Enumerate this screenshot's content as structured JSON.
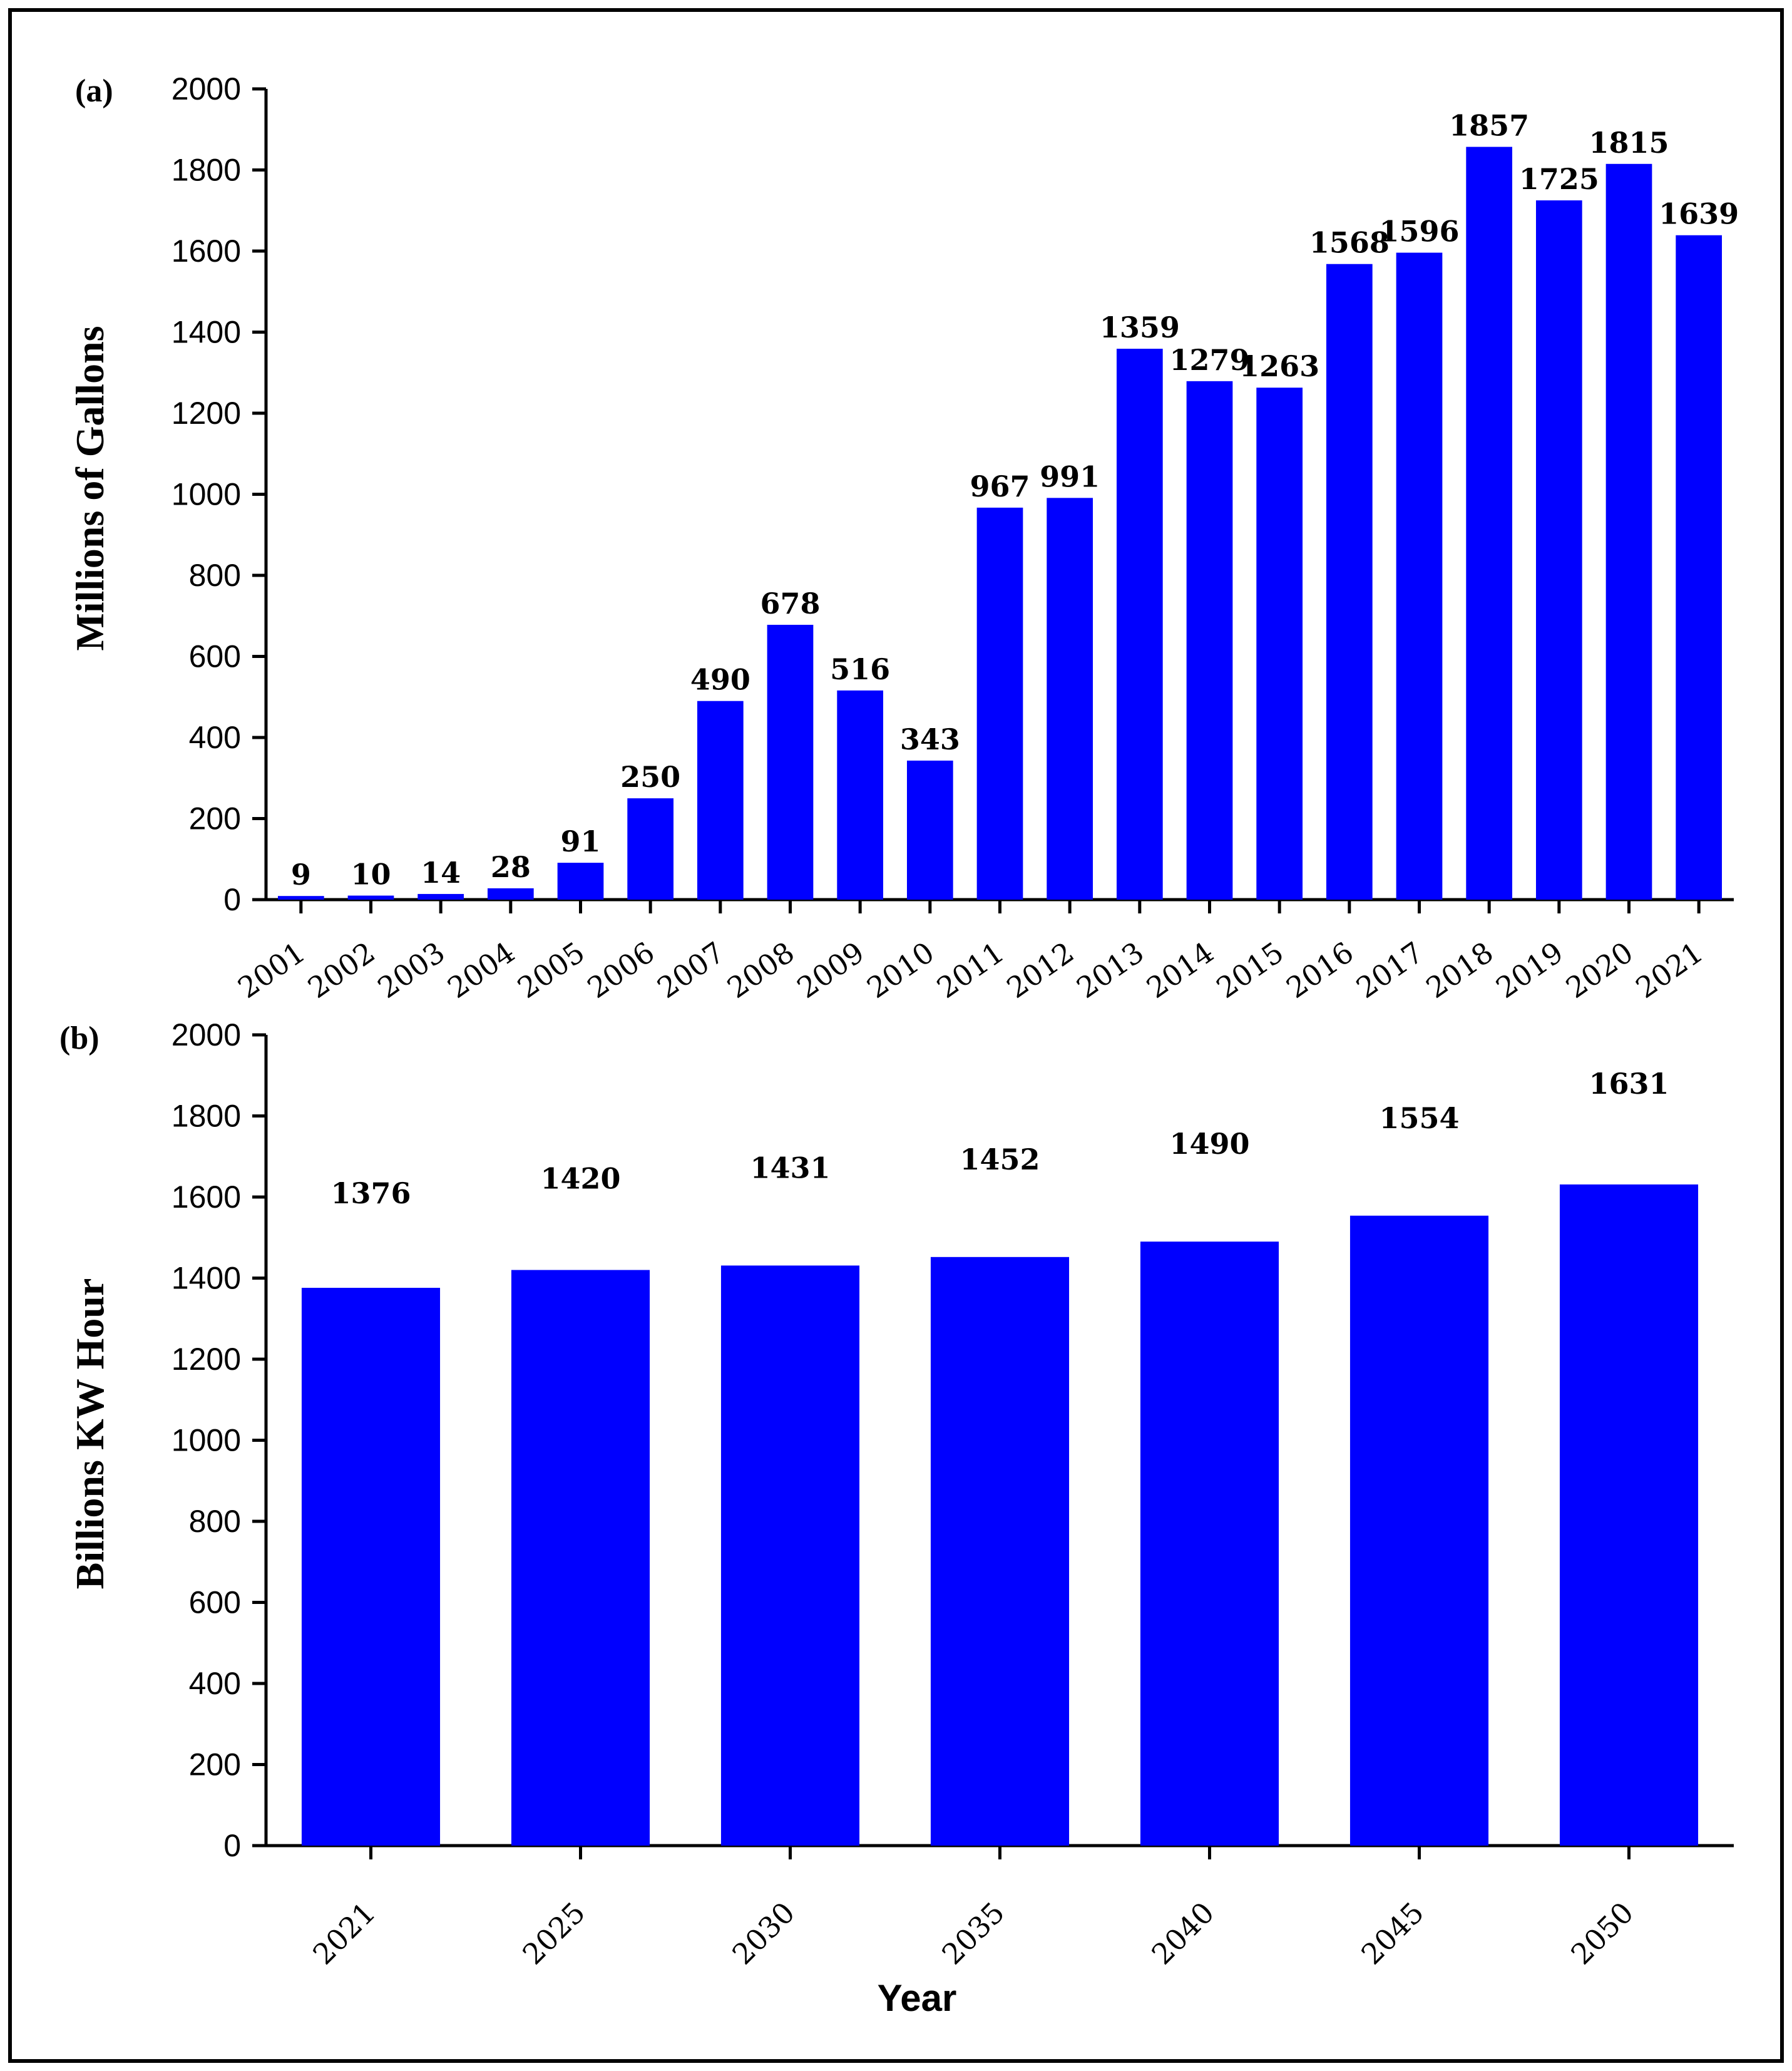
{
  "chart_data": [
    {
      "type": "bar",
      "panel_label": "(a)",
      "title": "",
      "xlabel": "",
      "ylabel": "Millions of Gallons",
      "ylim": [
        0,
        2000
      ],
      "yticks": [
        0,
        200,
        400,
        600,
        800,
        1000,
        1200,
        1400,
        1600,
        1800,
        2000
      ],
      "categories": [
        "2001",
        "2002",
        "2003",
        "2004",
        "2005",
        "2006",
        "2007",
        "2008",
        "2009",
        "2010",
        "2011",
        "2012",
        "2013",
        "2014",
        "2015",
        "2016",
        "2017",
        "2018",
        "2019",
        "2020",
        "2021"
      ],
      "values": [
        9,
        10,
        14,
        28,
        91,
        250,
        490,
        678,
        516,
        343,
        967,
        991,
        1359,
        1279,
        1263,
        1568,
        1596,
        1857,
        1725,
        1815,
        1639
      ],
      "bar_color": "#0000ff",
      "grid": false
    },
    {
      "type": "bar",
      "panel_label": "(b)",
      "title": "",
      "xlabel": "Year",
      "ylabel": "Billions KW Hour",
      "ylim": [
        0,
        2000
      ],
      "yticks": [
        0,
        200,
        400,
        600,
        800,
        1000,
        1200,
        1400,
        1600,
        1800,
        2000
      ],
      "categories": [
        "2021",
        "2025",
        "2030",
        "2035",
        "2040",
        "2045",
        "2050"
      ],
      "values": [
        1376,
        1420,
        1431,
        1452,
        1490,
        1554,
        1631
      ],
      "bar_color": "#0000ff",
      "grid": false
    }
  ]
}
